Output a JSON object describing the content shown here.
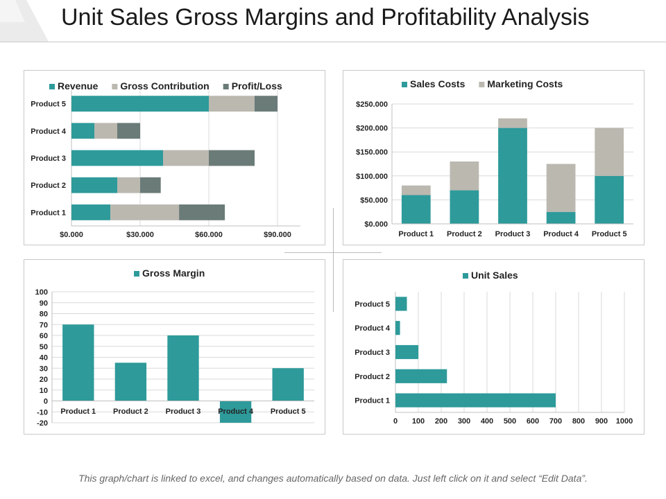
{
  "header": {
    "title": "Unit Sales Gross Margins and Profitability Analysis"
  },
  "footer": {
    "note": "This graph/chart is linked to excel, and changes automatically based on data. Just left click on it and select “Edit Data”."
  },
  "colors": {
    "teal": "#2e9a9a",
    "light_gray": "#bbb8b0",
    "dark_gray": "#6a7b78",
    "grid": "#d9d9d9",
    "axis": "#bfbfbf"
  },
  "chart_data": [
    {
      "id": "profitability",
      "type": "bar",
      "orientation": "horizontal",
      "stacked": true,
      "categories": [
        "Product 1",
        "Product 2",
        "Product 3",
        "Product 4",
        "Product 5"
      ],
      "series": [
        {
          "name": "Revenue",
          "color_key": "teal",
          "values": [
            17,
            20,
            40,
            10,
            60
          ]
        },
        {
          "name": "Gross Contribution",
          "color_key": "light_gray",
          "values": [
            30,
            10,
            20,
            10,
            20
          ]
        },
        {
          "name": "Profit/Loss",
          "color_key": "dark_gray",
          "values": [
            20,
            9,
            20,
            10,
            10
          ]
        }
      ],
      "xlim": [
        0,
        100
      ],
      "xticks": [
        0,
        30,
        60,
        90
      ],
      "xtick_labels": [
        "$0.000",
        "$30.000",
        "$60.000",
        "$90.000"
      ],
      "legend": "top",
      "grid": true
    },
    {
      "id": "costs",
      "type": "bar",
      "orientation": "vertical",
      "stacked": true,
      "categories": [
        "Product 1",
        "Product 2",
        "Product 3",
        "Product 4",
        "Product 5"
      ],
      "series": [
        {
          "name": "Sales Costs",
          "color_key": "teal",
          "values": [
            60,
            70,
            200,
            25,
            100
          ]
        },
        {
          "name": "Marketing Costs",
          "color_key": "light_gray",
          "values": [
            20,
            60,
            20,
            100,
            100
          ]
        }
      ],
      "ylim": [
        0,
        250
      ],
      "yticks": [
        0,
        50,
        100,
        150,
        200,
        250
      ],
      "ytick_labels": [
        "$0.000",
        "$50.000",
        "$100.000",
        "$150.000",
        "$200.000",
        "$250.000"
      ],
      "legend": "top",
      "grid": true
    },
    {
      "id": "gross_margin",
      "type": "bar",
      "orientation": "vertical",
      "stacked": false,
      "categories": [
        "Product 1",
        "Product 2",
        "Product 3",
        "Product 4",
        "Product 5"
      ],
      "series": [
        {
          "name": "Gross Margin",
          "color_key": "teal",
          "values": [
            70,
            35,
            60,
            -20,
            30
          ]
        }
      ],
      "ylim": [
        -20,
        100
      ],
      "yticks": [
        -20,
        -10,
        0,
        10,
        20,
        30,
        40,
        50,
        60,
        70,
        80,
        90,
        100
      ],
      "ytick_labels": [
        "-20",
        "-10",
        "0",
        "10",
        "20",
        "30",
        "40",
        "50",
        "60",
        "70",
        "80",
        "90",
        "100"
      ],
      "legend": "top",
      "grid": true
    },
    {
      "id": "unit_sales",
      "type": "bar",
      "orientation": "horizontal",
      "stacked": false,
      "categories": [
        "Product 1",
        "Product 2",
        "Product 3",
        "Product 4",
        "Product 5"
      ],
      "series": [
        {
          "name": "Unit Sales",
          "color_key": "teal",
          "values": [
            700,
            225,
            100,
            20,
            50
          ]
        }
      ],
      "xlim": [
        0,
        1000
      ],
      "xticks": [
        0,
        100,
        200,
        300,
        400,
        500,
        600,
        700,
        800,
        900,
        1000
      ],
      "xtick_labels": [
        "0",
        "100",
        "200",
        "300",
        "400",
        "500",
        "600",
        "700",
        "800",
        "900",
        "1000"
      ],
      "legend": "top",
      "grid": true
    }
  ]
}
